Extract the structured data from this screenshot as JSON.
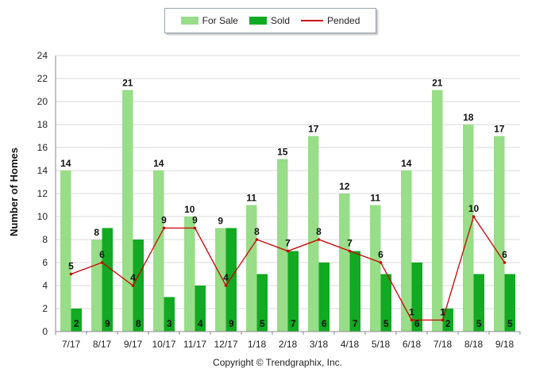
{
  "legend": {
    "for_sale_label": "For Sale",
    "sold_label": "Sold",
    "pended_label": "Pended"
  },
  "copyright": "Copyright © Trendgraphix, Inc.",
  "colors": {
    "for_sale": "#98dd88",
    "sold": "#11aa22",
    "pended": "#cc0000",
    "grid": "#d8d8d8",
    "axis": "#888888"
  },
  "chart_data": {
    "type": "bar",
    "xlabel": "",
    "ylabel": "Number of Homes",
    "ylim": [
      0,
      24
    ],
    "yticks": [
      0,
      2,
      4,
      6,
      8,
      10,
      12,
      14,
      16,
      18,
      20,
      22,
      24
    ],
    "grid": true,
    "legend_position": "top-center",
    "categories": [
      "7/17",
      "8/17",
      "9/17",
      "10/17",
      "11/17",
      "12/17",
      "1/18",
      "2/18",
      "3/18",
      "4/18",
      "5/18",
      "6/18",
      "7/18",
      "8/18",
      "9/18"
    ],
    "series": [
      {
        "name": "For Sale",
        "kind": "bar",
        "values": [
          14,
          8,
          21,
          14,
          10,
          9,
          11,
          15,
          17,
          12,
          11,
          14,
          21,
          18,
          17
        ]
      },
      {
        "name": "Sold",
        "kind": "bar",
        "values": [
          2,
          9,
          8,
          3,
          4,
          9,
          5,
          7,
          6,
          7,
          5,
          6,
          2,
          5,
          5
        ]
      },
      {
        "name": "Pended",
        "kind": "line",
        "values": [
          5,
          6,
          4,
          9,
          9,
          4,
          8,
          7,
          8,
          7,
          6,
          1,
          1,
          10,
          6
        ]
      }
    ]
  }
}
